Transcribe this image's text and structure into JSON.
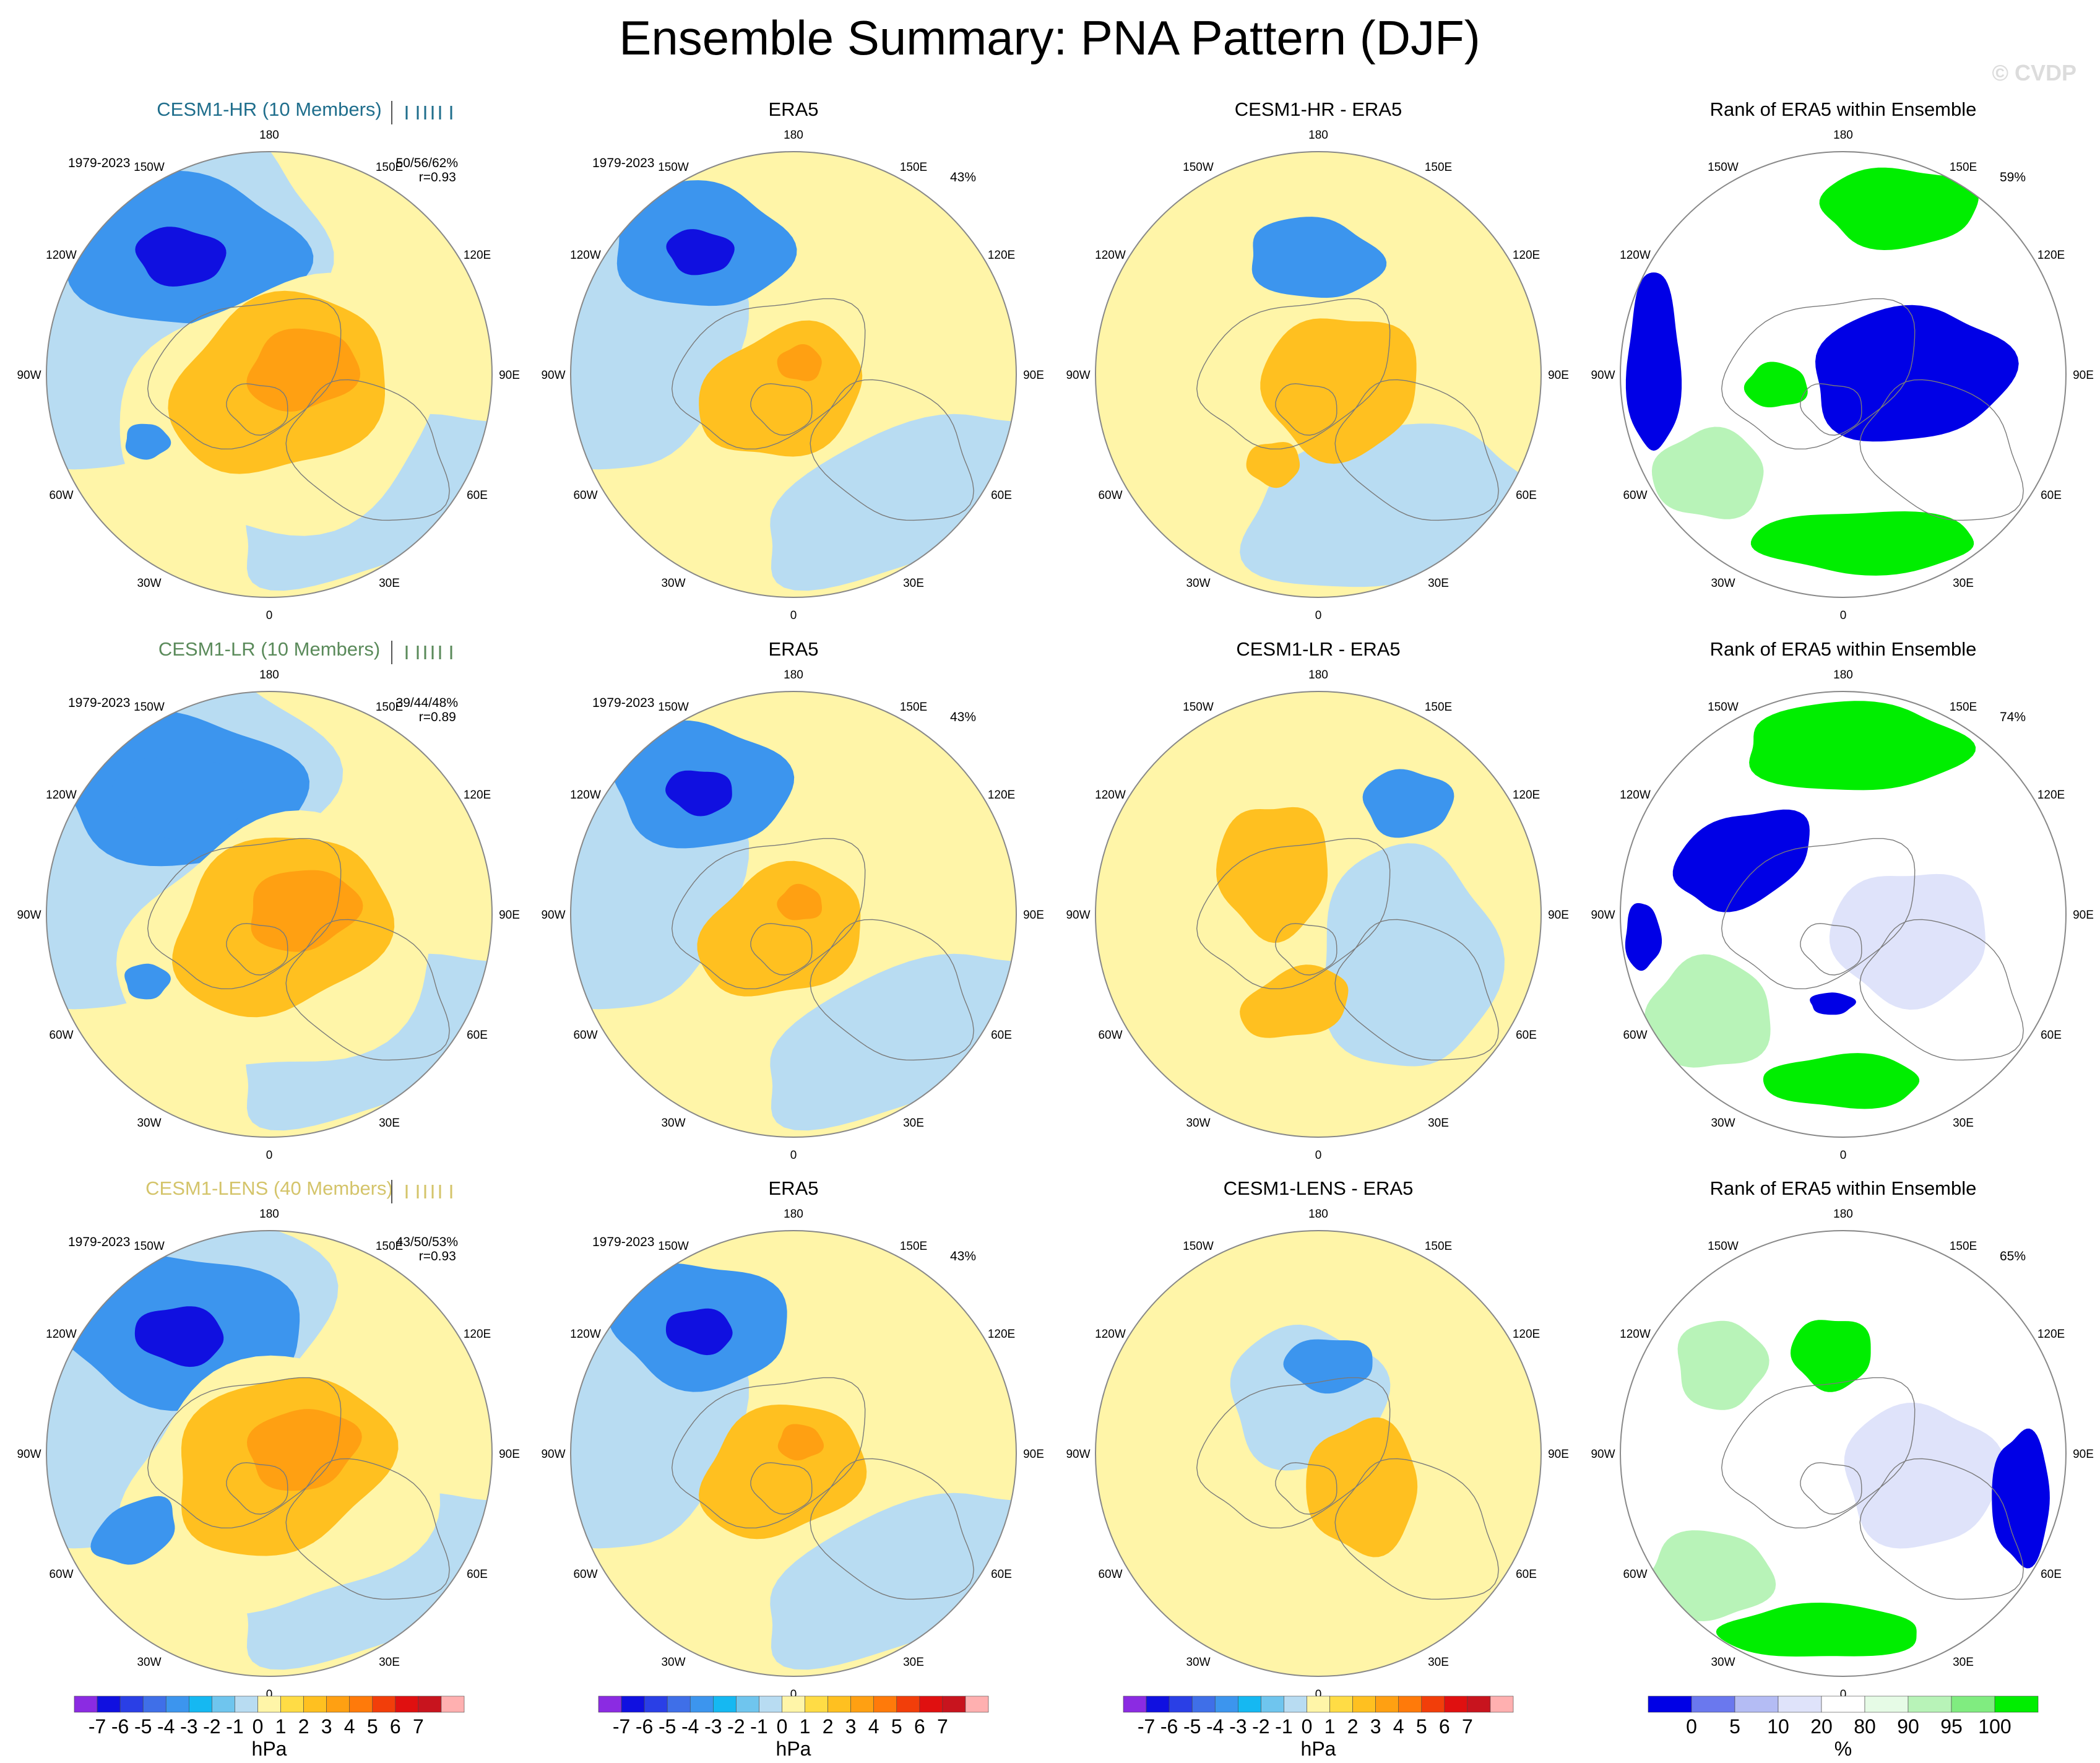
{
  "title": "Ensemble Summary: PNA Pattern (DJF)",
  "watermark": "© CVDP",
  "colors": {
    "diverging": [
      "#8b2be2",
      "#1010e0",
      "#2a3fe6",
      "#3f6fe8",
      "#3c95ee",
      "#15b8f2",
      "#6fc5ee",
      "#b8dcf2",
      "#fff5a8",
      "#ffdc45",
      "#ffc020",
      "#ffa012",
      "#ff7a0a",
      "#f23e0a",
      "#e01010",
      "#c8141e",
      "#ffb0b0"
    ],
    "rank": [
      "#0000e6",
      "#6a78ee",
      "#b4bcf4",
      "#dfe3fa",
      "#ffffff",
      "#e6fbe6",
      "#b8f3b8",
      "#80ec80",
      "#00ee00"
    ],
    "neg_strong": "#1010e0",
    "neg_mid": "#3c95ee",
    "neg_weak": "#b8dcf2",
    "pos_weak": "#fff5a8",
    "pos_mid": "#ffc020",
    "pos_strong": "#ffa012",
    "rank_low": "#0000e6",
    "rank_high": "#00ee00",
    "rank_midlow": "#dfe3fa",
    "rank_midhigh": "#b8f3b8"
  },
  "lon_labels": [
    "180",
    "150E",
    "120E",
    "90E",
    "60E",
    "30E",
    "0",
    "30W",
    "60W",
    "90W",
    "120W",
    "150W"
  ],
  "rows": [
    {
      "model": {
        "title": "CESM1-HR (10 Members)",
        "title_color": "#1f6e8c",
        "period": "1979-2023",
        "stats": "50/56/62%",
        "r": "r=0.93"
      },
      "obs": {
        "title": "ERA5",
        "period": "1979-2023",
        "pct": "43%"
      },
      "diff": {
        "title": "CESM1-HR - ERA5"
      },
      "rank": {
        "title": "Rank of ERA5 within Ensemble",
        "pct": "59%"
      }
    },
    {
      "model": {
        "title": "CESM1-LR (10 Members)",
        "title_color": "#5a8a5a",
        "period": "1979-2023",
        "stats": "39/44/48%",
        "r": "r=0.89"
      },
      "obs": {
        "title": "ERA5",
        "period": "1979-2023",
        "pct": "43%"
      },
      "diff": {
        "title": "CESM1-LR - ERA5"
      },
      "rank": {
        "title": "Rank of ERA5 within Ensemble",
        "pct": "74%"
      }
    },
    {
      "model": {
        "title": "CESM1-LENS (40 Members)",
        "title_color": "#d4c46a",
        "period": "1979-2023",
        "stats": "43/50/53%",
        "r": "r=0.93"
      },
      "obs": {
        "title": "ERA5",
        "period": "1979-2023",
        "pct": "43%"
      },
      "diff": {
        "title": "CESM1-LENS - ERA5"
      },
      "rank": {
        "title": "Rank of ERA5 within Ensemble",
        "pct": "65%"
      }
    }
  ],
  "colorbars": {
    "hpa_labels": [
      "-7",
      "-6",
      "-5",
      "-4",
      "-3",
      "-2",
      "-1",
      "0",
      "1",
      "2",
      "3",
      "4",
      "5",
      "6",
      "7"
    ],
    "hpa_unit": "hPa",
    "rank_labels": [
      "0",
      "5",
      "10",
      "20",
      "80",
      "90",
      "95",
      "100"
    ],
    "rank_unit": "%"
  },
  "chart_data": [
    {
      "type": "heatmap",
      "title": "CESM1-HR (10 Members)",
      "projection": "north polar stereographic",
      "units": "hPa",
      "levels": [
        -7,
        -6,
        -5,
        -4,
        -3,
        -2,
        -1,
        0,
        1,
        2,
        3,
        4,
        5,
        6,
        7
      ],
      "blobs": [
        {
          "lon": -150,
          "lat": 55,
          "value": -6.5
        },
        {
          "lon": -100,
          "lat": 62,
          "value": 3.8
        },
        {
          "lon": -80,
          "lat": 35,
          "value": -1.6
        }
      ]
    },
    {
      "type": "heatmap",
      "title": "ERA5",
      "units": "hPa",
      "blobs": [
        {
          "lon": -150,
          "lat": 55,
          "value": -5.4
        },
        {
          "lon": -110,
          "lat": 65,
          "value": 3.0
        }
      ]
    },
    {
      "type": "heatmap",
      "title": "CESM1-HR - ERA5",
      "units": "hPa",
      "blobs": [
        {
          "lon": -140,
          "lat": 52,
          "value": -1.6
        },
        {
          "lon": -80,
          "lat": 55,
          "value": 1.8
        }
      ]
    },
    {
      "type": "heatmap",
      "title": "Rank of ERA5 within Ensemble",
      "units": "%",
      "levels": [
        0,
        5,
        10,
        20,
        80,
        90,
        95,
        100
      ]
    },
    {
      "type": "heatmap",
      "title": "CESM1-LR (10 Members)",
      "units": "hPa",
      "blobs": [
        {
          "lon": -150,
          "lat": 55,
          "value": -4.7
        },
        {
          "lon": -100,
          "lat": 62,
          "value": 2.6
        },
        {
          "lon": -70,
          "lat": 32,
          "value": -1.8
        }
      ]
    },
    {
      "type": "heatmap",
      "title": "ERA5",
      "units": "hPa",
      "blobs": [
        {
          "lon": -150,
          "lat": 55,
          "value": -5.4
        },
        {
          "lon": -110,
          "lat": 65,
          "value": 3.0
        }
      ]
    },
    {
      "type": "heatmap",
      "title": "CESM1-LR - ERA5",
      "units": "hPa",
      "blobs": [
        {
          "lon": -170,
          "lat": 55,
          "value": -1.8
        },
        {
          "lon": -90,
          "lat": 60,
          "value": 1.9
        }
      ]
    },
    {
      "type": "heatmap",
      "title": "Rank of ERA5 within Ensemble",
      "units": "%",
      "levels": [
        0,
        5,
        10,
        20,
        80,
        90,
        95,
        100
      ]
    },
    {
      "type": "heatmap",
      "title": "CESM1-LENS (40 Members)",
      "units": "hPa",
      "blobs": [
        {
          "lon": -150,
          "lat": 55,
          "value": -5.8
        },
        {
          "lon": -100,
          "lat": 62,
          "value": 3.2
        },
        {
          "lon": -75,
          "lat": 32,
          "value": -1.7
        }
      ]
    },
    {
      "type": "heatmap",
      "title": "ERA5",
      "units": "hPa",
      "blobs": [
        {
          "lon": -150,
          "lat": 55,
          "value": -5.4
        },
        {
          "lon": -110,
          "lat": 65,
          "value": 3.0
        }
      ]
    },
    {
      "type": "heatmap",
      "title": "CESM1-LENS - ERA5",
      "units": "hPa",
      "blobs": [
        {
          "lon": -160,
          "lat": 60,
          "value": -2.4
        },
        {
          "lon": -90,
          "lat": 55,
          "value": 1.8
        }
      ]
    },
    {
      "type": "heatmap",
      "title": "Rank of ERA5 within Ensemble",
      "units": "%",
      "levels": [
        0,
        5,
        10,
        20,
        80,
        90,
        95,
        100
      ]
    }
  ]
}
